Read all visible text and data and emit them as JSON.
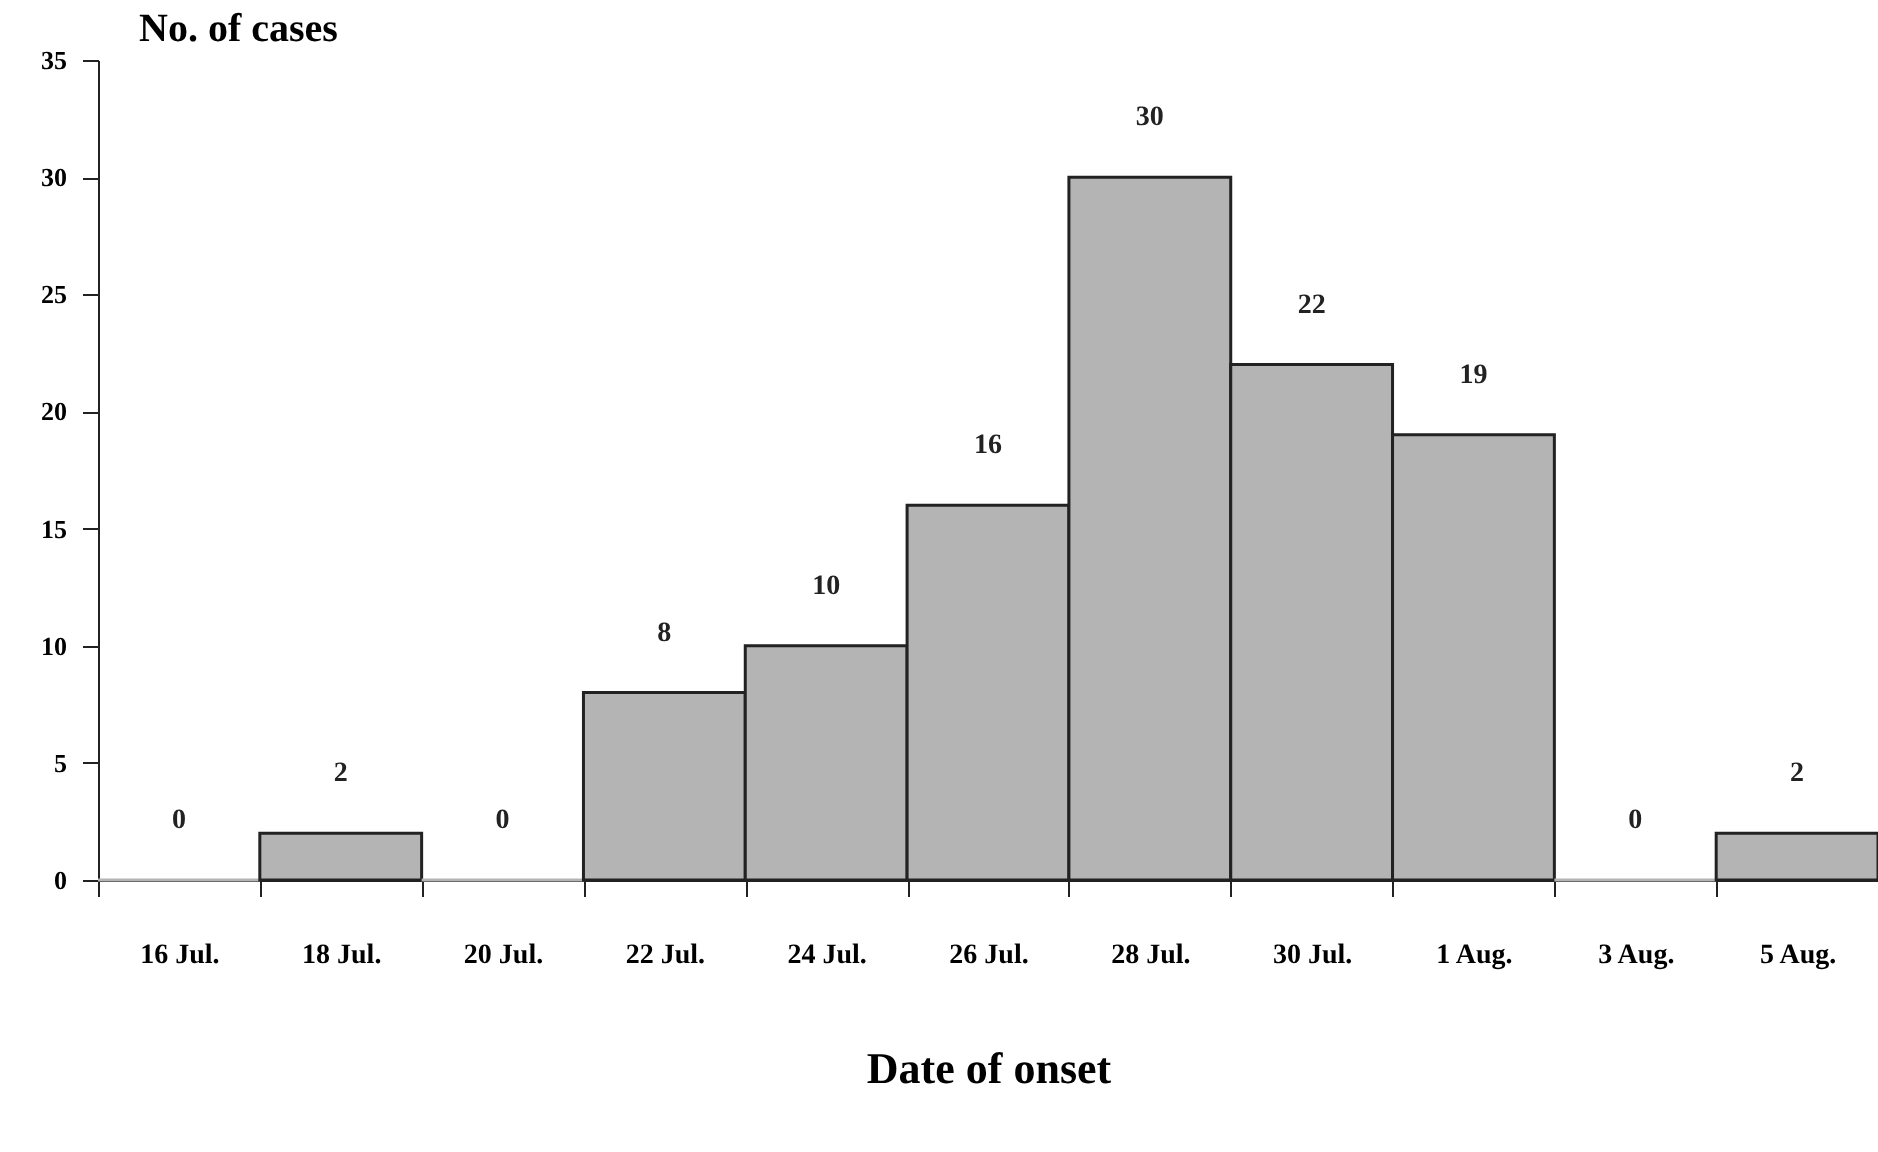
{
  "chart_data": {
    "type": "bar",
    "ylabel": "No. of cases",
    "xlabel": "Date of onset",
    "categories": [
      "16 Jul.",
      "18 Jul.",
      "20 Jul.",
      "22 Jul.",
      "24 Jul.",
      "26 Jul.",
      "28 Jul.",
      "30 Jul.",
      "1 Aug.",
      "3 Aug.",
      "5 Aug."
    ],
    "values": [
      0,
      2,
      0,
      8,
      10,
      16,
      30,
      22,
      19,
      0,
      2
    ],
    "color": "#b4b4b4",
    "ylim": [
      0,
      35
    ],
    "yticks": [
      0,
      5,
      10,
      15,
      20,
      25,
      30,
      35
    ],
    "data_labels": true
  }
}
